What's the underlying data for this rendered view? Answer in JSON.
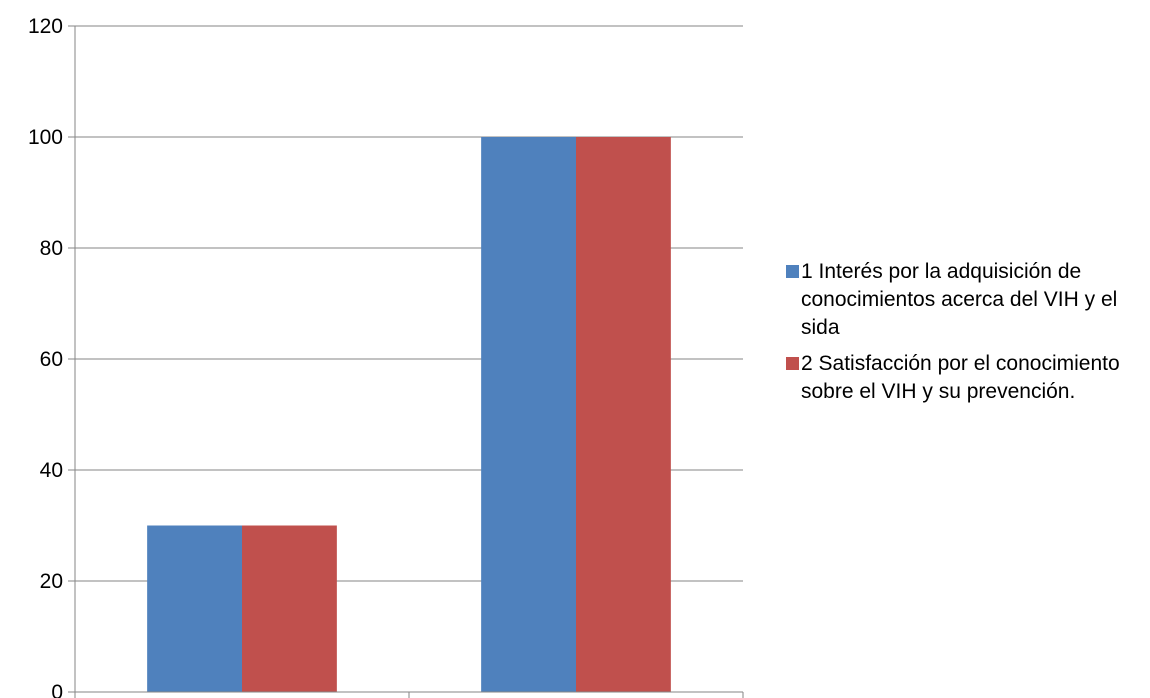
{
  "chart_data": {
    "type": "bar",
    "categories": [
      "",
      ""
    ],
    "series": [
      {
        "name": "1 Interés por la adquisición de conocimientos acerca del VIH y el sida",
        "color": "#4F81BD",
        "values": [
          30,
          100
        ]
      },
      {
        "name": "2 Satisfacción por el conocimiento sobre el VIH y su prevención.",
        "color": "#C0504D",
        "values": [
          30,
          100
        ]
      }
    ],
    "title": "",
    "xlabel": "",
    "ylabel": "",
    "ylim": [
      0,
      120
    ],
    "yticks": [
      "0",
      "20",
      "40",
      "60",
      "80",
      "100",
      "120"
    ],
    "grid": true,
    "legend_position": "right"
  }
}
